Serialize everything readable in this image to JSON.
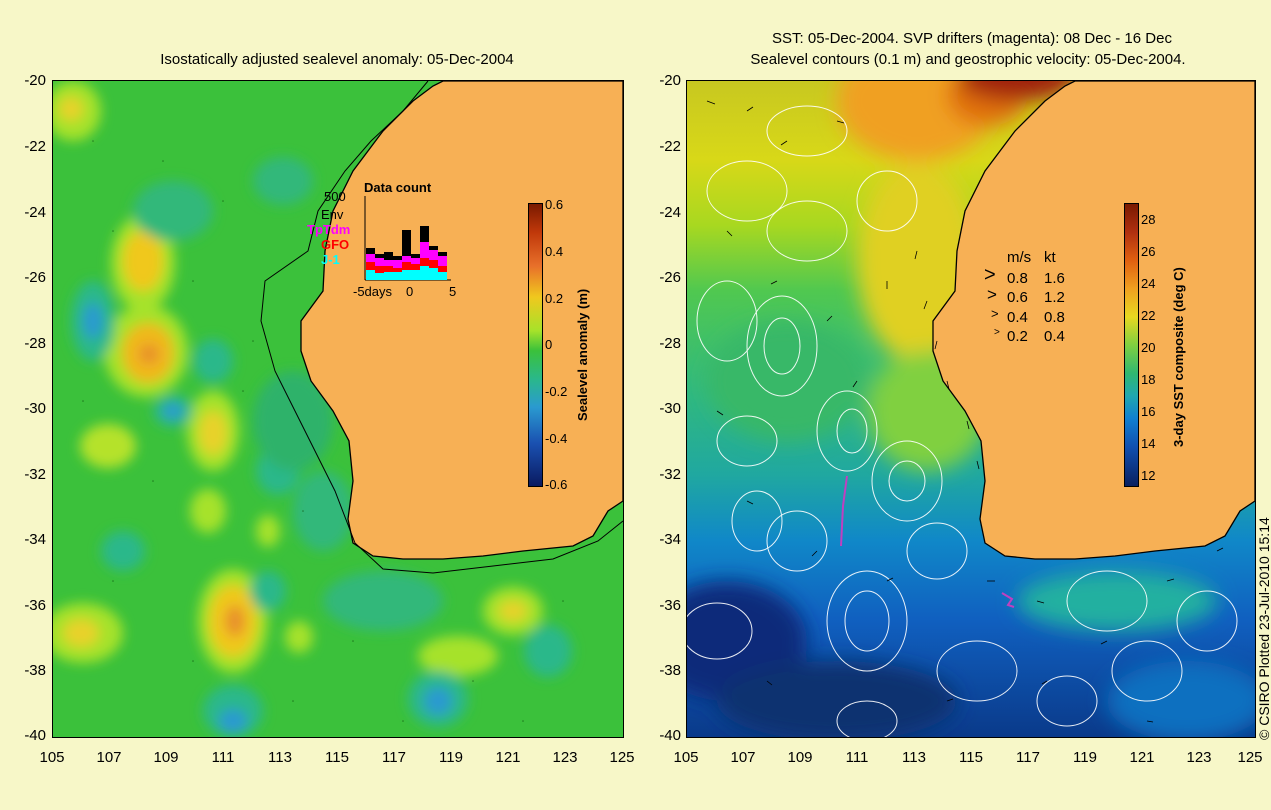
{
  "left_panel": {
    "title": "Isostatically adjusted sealevel anomaly: 05-Dec-2004",
    "y_ticks": [
      "-20",
      "-22",
      "-24",
      "-26",
      "-28",
      "-30",
      "-32",
      "-34",
      "-36",
      "-38",
      "-40"
    ],
    "x_ticks": [
      "105",
      "107",
      "109",
      "111",
      "113",
      "115",
      "117",
      "119",
      "121",
      "123",
      "125"
    ],
    "colorbar": {
      "label": "Sealevel anomaly (m)",
      "ticks": [
        "0.6",
        "0.4",
        "0.2",
        "0",
        "-0.2",
        "-0.4",
        "-0.6"
      ]
    },
    "inset": {
      "title": "Data count",
      "max_label": "500",
      "legend": [
        {
          "label": "Env",
          "color": "#000000"
        },
        {
          "label": "TpTdm",
          "color": "#ff00ff"
        },
        {
          "label": "GFO",
          "color": "#ff0000"
        },
        {
          "label": "J-1",
          "color": "#00ffff"
        }
      ],
      "x_labels": [
        "-5days",
        "0",
        "5"
      ]
    }
  },
  "right_panel": {
    "title_line1": "SST: 05-Dec-2004. SVP drifters (magenta): 08 Dec - 16 Dec",
    "title_line2": "Sealevel contours (0.1 m) and geostrophic velocity: 05-Dec-2004.",
    "y_ticks": [
      "-20",
      "-22",
      "-24",
      "-26",
      "-28",
      "-30",
      "-32",
      "-34",
      "-36",
      "-38",
      "-40"
    ],
    "x_ticks": [
      "105",
      "107",
      "109",
      "111",
      "113",
      "115",
      "117",
      "119",
      "121",
      "123",
      "125"
    ],
    "colorbar": {
      "label": "3-day SST composite (deg C)",
      "ticks": [
        "28",
        "26",
        "24",
        "22",
        "20",
        "18",
        "16",
        "14",
        "12"
      ]
    },
    "velocity_legend": {
      "header_ms": "m/s",
      "header_kt": "kt",
      "rows": [
        {
          "ms": "0.8",
          "kt": "1.6"
        },
        {
          "ms": "0.6",
          "kt": "1.2"
        },
        {
          "ms": "0.4",
          "kt": "0.8"
        },
        {
          "ms": "0.2",
          "kt": "0.4"
        }
      ]
    }
  },
  "credit": "© CSIRO Plotted 23-Jul-2010 15:14",
  "colors": {
    "land": "#f7b055",
    "background": "#f7f7c8"
  }
}
